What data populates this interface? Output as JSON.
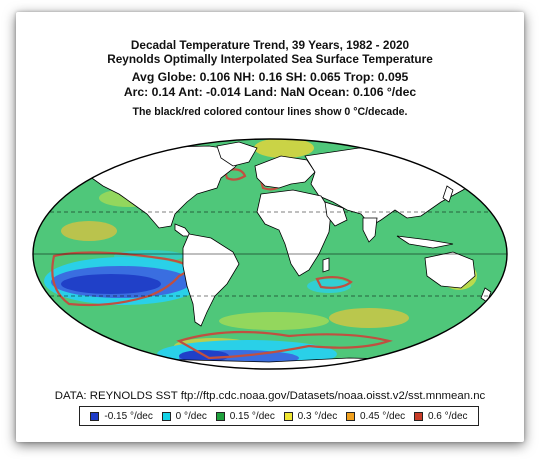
{
  "title": {
    "line1": "Decadal Temperature Trend, 39 Years, 1982 - 2020",
    "line2": "Reynolds Optimally Interpolated Sea Surface Temperature",
    "line3": "Avg Globe: 0.106  NH: 0.16  SH: 0.065  Trop: 0.095",
    "line4": "Arc: 0.14  Ant: -0.014  Land: NaN Ocean: 0.106 °/dec",
    "line5": "The black/red colored contour lines show 0 °C/decade."
  },
  "source": "DATA: REYNOLDS SST ftp://ftp.cdc.noaa.gov/Datasets/noaa.oisst.v2/sst.mnmean.nc",
  "legend": [
    {
      "label": "-0.15 °/dec",
      "color": "#1e3cc8"
    },
    {
      "label": "0 °/dec",
      "color": "#14d2e6"
    },
    {
      "label": "0.15 °/dec",
      "color": "#1ea03c"
    },
    {
      "label": "0.3 °/dec",
      "color": "#f0e632"
    },
    {
      "label": "0.45 °/dec",
      "color": "#f0a01e"
    },
    {
      "label": "0.6 °/dec",
      "color": "#c83c28"
    }
  ],
  "colors": {
    "ocean_base": "#4fc77a",
    "land": "#ffffff",
    "land_outline": "#000000",
    "zero_contour": "#c05040"
  }
}
